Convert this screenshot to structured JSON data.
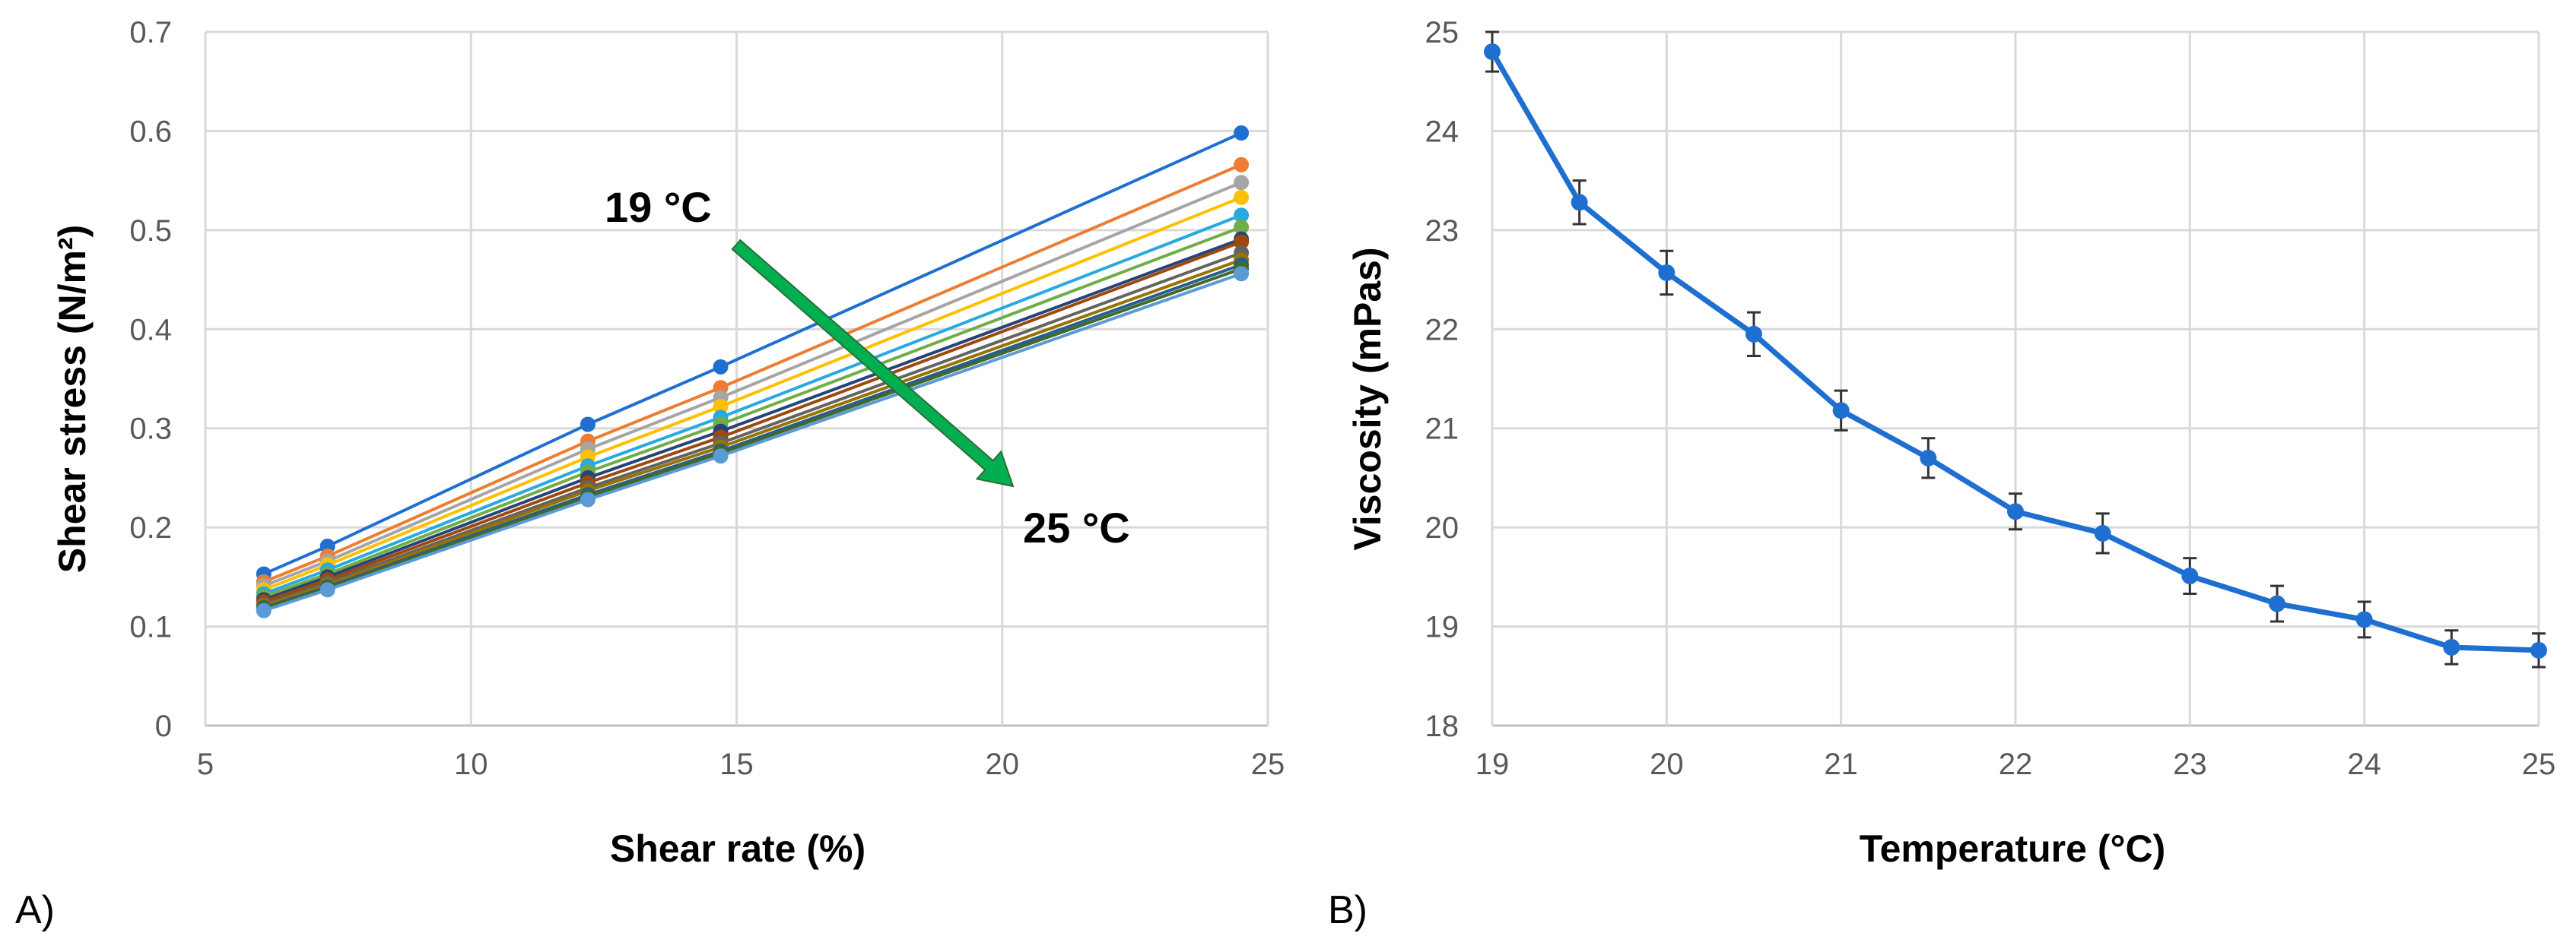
{
  "panel_labels": {
    "a": "A)",
    "b": "B)"
  },
  "chart_data": [
    {
      "type": "line",
      "xlabel": "Shear rate (%)",
      "ylabel": "Shear stress (N/m²)",
      "xlim": [
        5,
        25
      ],
      "ylim": [
        0,
        0.7
      ],
      "xticks": [
        "5",
        "10",
        "15",
        "20",
        "25"
      ],
      "yticks": [
        "0",
        "0.1",
        "0.2",
        "0.3",
        "0.4",
        "0.5",
        "0.6",
        "0.7"
      ],
      "grid": true,
      "markers": true,
      "annotations": {
        "start": "19 °C",
        "end": "25 °C",
        "arrow_color": "#00b050"
      },
      "x": [
        6.1,
        7.3,
        12.2,
        14.7,
        24.5
      ],
      "series": [
        {
          "color": "#1f6fd1",
          "values": [
            0.153,
            0.181,
            0.304,
            0.362,
            0.598
          ]
        },
        {
          "color": "#ed7d31",
          "values": [
            0.145,
            0.171,
            0.287,
            0.341,
            0.566
          ]
        },
        {
          "color": "#a5a5a5",
          "values": [
            0.141,
            0.166,
            0.279,
            0.331,
            0.548
          ]
        },
        {
          "color": "#ffc000",
          "values": [
            0.137,
            0.162,
            0.271,
            0.322,
            0.533
          ]
        },
        {
          "color": "#27a9e1",
          "values": [
            0.133,
            0.157,
            0.262,
            0.311,
            0.515
          ]
        },
        {
          "color": "#70ad47",
          "values": [
            0.13,
            0.153,
            0.256,
            0.304,
            0.503
          ]
        },
        {
          "color": "#264478",
          "values": [
            0.127,
            0.15,
            0.25,
            0.297,
            0.491
          ]
        },
        {
          "color": "#9e480e",
          "values": [
            0.125,
            0.147,
            0.245,
            0.291,
            0.488
          ]
        },
        {
          "color": "#636363",
          "values": [
            0.122,
            0.144,
            0.24,
            0.285,
            0.477
          ]
        },
        {
          "color": "#997300",
          "values": [
            0.121,
            0.142,
            0.237,
            0.281,
            0.47
          ]
        },
        {
          "color": "#255e91",
          "values": [
            0.119,
            0.14,
            0.233,
            0.277,
            0.465
          ]
        },
        {
          "color": "#43682b",
          "values": [
            0.118,
            0.139,
            0.231,
            0.275,
            0.461
          ]
        },
        {
          "color": "#5b9bd5",
          "values": [
            0.116,
            0.137,
            0.228,
            0.272,
            0.456
          ]
        }
      ]
    },
    {
      "type": "line",
      "xlabel": "Temperature (°C)",
      "ylabel": "Viscosity (mPas)",
      "xlim": [
        19,
        25
      ],
      "ylim": [
        18,
        25
      ],
      "xticks": [
        "19",
        "20",
        "21",
        "22",
        "23",
        "24",
        "25"
      ],
      "yticks": [
        "18",
        "19",
        "20",
        "21",
        "22",
        "23",
        "24",
        "25"
      ],
      "grid": true,
      "error_bars": true,
      "color": "#1f6fd1",
      "x": [
        19,
        19.5,
        20,
        20.5,
        21,
        21.5,
        22,
        22.5,
        23,
        23.5,
        24,
        24.5,
        25
      ],
      "values": [
        24.8,
        23.28,
        22.57,
        21.95,
        21.18,
        20.7,
        20.16,
        19.94,
        19.51,
        19.23,
        19.07,
        18.79,
        18.76
      ],
      "errors": [
        0.2,
        0.22,
        0.22,
        0.22,
        0.2,
        0.2,
        0.18,
        0.2,
        0.18,
        0.18,
        0.18,
        0.17,
        0.17
      ]
    }
  ]
}
